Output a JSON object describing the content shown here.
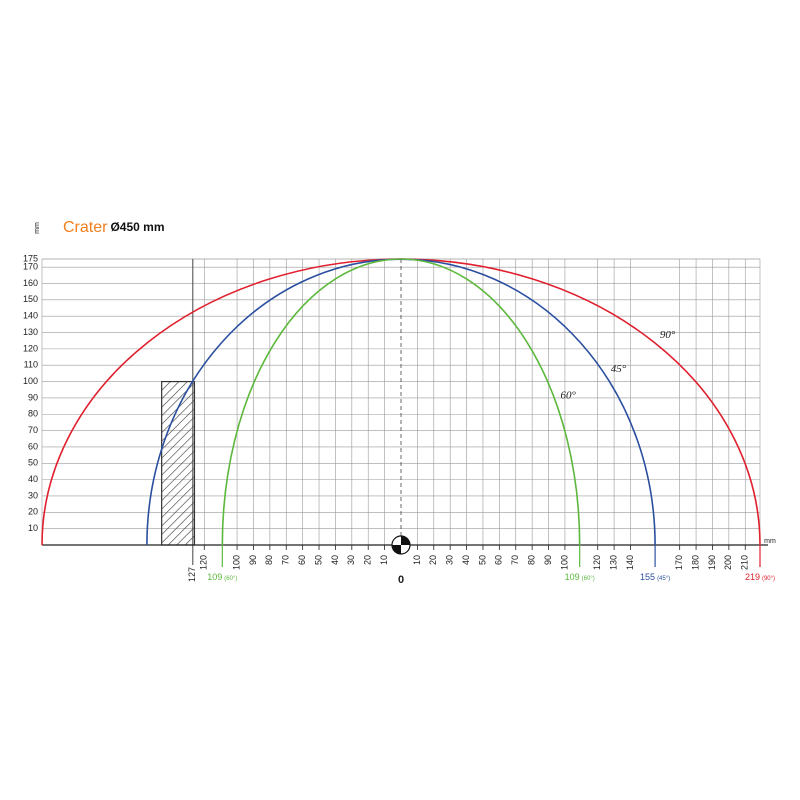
{
  "chart_data": {
    "type": "beam",
    "title": "Crater",
    "subtitle": "Ø450 mm",
    "title_color": "#f07f1e",
    "y_label": "mm",
    "x_label": "mm",
    "xlim": [
      -219,
      219
    ],
    "ylim": [
      0,
      175
    ],
    "yticks": [
      10,
      20,
      30,
      40,
      50,
      60,
      70,
      80,
      90,
      100,
      110,
      120,
      130,
      140,
      150,
      160,
      170,
      175
    ],
    "xticks": [
      {
        "value": -120,
        "label": "120"
      },
      {
        "value": -100,
        "label": "100"
      },
      {
        "value": -90,
        "label": "90"
      },
      {
        "value": -80,
        "label": "80"
      },
      {
        "value": -70,
        "label": "70"
      },
      {
        "value": -60,
        "label": "60"
      },
      {
        "value": -50,
        "label": "50"
      },
      {
        "value": -40,
        "label": "40"
      },
      {
        "value": -30,
        "label": "30"
      },
      {
        "value": -20,
        "label": "20"
      },
      {
        "value": -10,
        "label": "10"
      },
      10,
      20,
      30,
      40,
      50,
      60,
      70,
      80,
      90,
      100,
      120,
      130,
      140,
      170,
      180,
      190,
      200,
      210
    ],
    "origin_label": "0",
    "marker_tick": {
      "value": -127,
      "label": "127"
    },
    "edge_ticks": [
      {
        "value": -109,
        "label": "109",
        "note": "(60°)",
        "color": "#5cb83c"
      },
      {
        "value": 109,
        "label": "109",
        "note": "(60°)",
        "color": "#5cb83c"
      },
      {
        "value": 155,
        "label": "155",
        "note": "(45°)",
        "color": "#2b4fa0"
      },
      {
        "value": 219,
        "label": "219",
        "note": "(90°)",
        "color": "#e0202e"
      }
    ],
    "obstacle": {
      "x0": -146,
      "x1": -126,
      "height": 100
    },
    "grid": true,
    "series": [
      {
        "name": "90°",
        "color": "#e0202e",
        "half_width": 219,
        "peak": 175
      },
      {
        "name": "45°",
        "color": "#2b4fa0",
        "half_width": 155,
        "peak": 175
      },
      {
        "name": "60°",
        "color": "#5cb83c",
        "half_width": 109,
        "peak": 175
      }
    ]
  }
}
